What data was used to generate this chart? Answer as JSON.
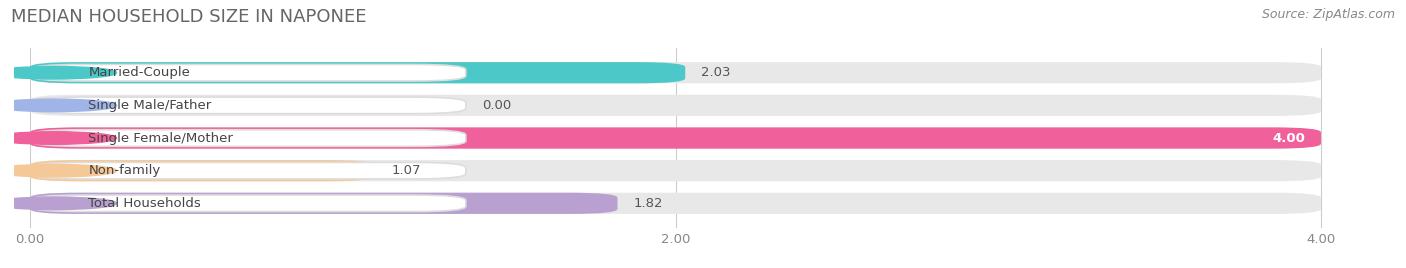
{
  "title": "MEDIAN HOUSEHOLD SIZE IN NAPONEE",
  "source": "Source: ZipAtlas.com",
  "categories": [
    "Married-Couple",
    "Single Male/Father",
    "Single Female/Mother",
    "Non-family",
    "Total Households"
  ],
  "values": [
    2.03,
    0.0,
    4.0,
    1.07,
    1.82
  ],
  "bar_colors": [
    "#4dc8c8",
    "#a0b4e8",
    "#f0609a",
    "#f5c897",
    "#b8a0d0"
  ],
  "bg_color": "#ffffff",
  "bar_bg_color": "#e8e8e8",
  "label_box_color": "#ffffff",
  "xlim": [
    0,
    4.0
  ],
  "xticks": [
    0.0,
    2.0,
    4.0
  ],
  "xtick_labels": [
    "0.00",
    "2.00",
    "4.00"
  ],
  "title_fontsize": 13,
  "label_fontsize": 9.5,
  "value_fontsize": 9.5,
  "source_fontsize": 9
}
